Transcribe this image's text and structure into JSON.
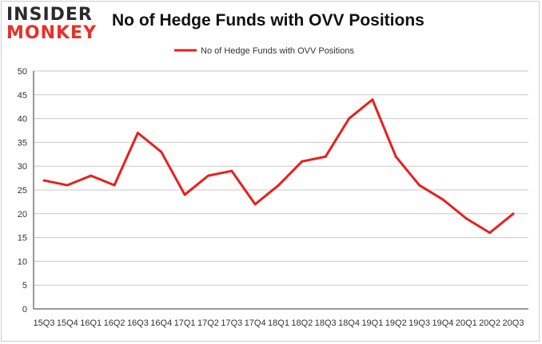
{
  "logo": {
    "line1": "INSIDER",
    "line2": "MONKEY"
  },
  "chart_data": {
    "type": "line",
    "title": "No of Hedge Funds with OVV Positions",
    "xlabel": "",
    "ylabel": "",
    "categories": [
      "15Q3",
      "15Q4",
      "16Q1",
      "16Q2",
      "16Q3",
      "16Q4",
      "17Q1",
      "17Q2",
      "17Q3",
      "17Q4",
      "18Q1",
      "18Q2",
      "18Q3",
      "18Q4",
      "19Q1",
      "19Q2",
      "19Q3",
      "19Q4",
      "20Q1",
      "20Q2",
      "20Q3"
    ],
    "series": [
      {
        "name": "No of Hedge Funds with OVV Positions",
        "values": [
          27,
          26,
          28,
          26,
          37,
          33,
          24,
          28,
          29,
          22,
          26,
          31,
          32,
          40,
          44,
          32,
          26,
          23,
          19,
          16,
          20
        ]
      }
    ],
    "ylim": [
      0,
      50
    ],
    "yticks": [
      0,
      5,
      10,
      15,
      20,
      25,
      30,
      35,
      40,
      45,
      50
    ],
    "grid": true,
    "legend": "top-center",
    "colors": {
      "line": "#e8201c",
      "grid": "#c8c8c8",
      "axis": "#333333"
    }
  }
}
